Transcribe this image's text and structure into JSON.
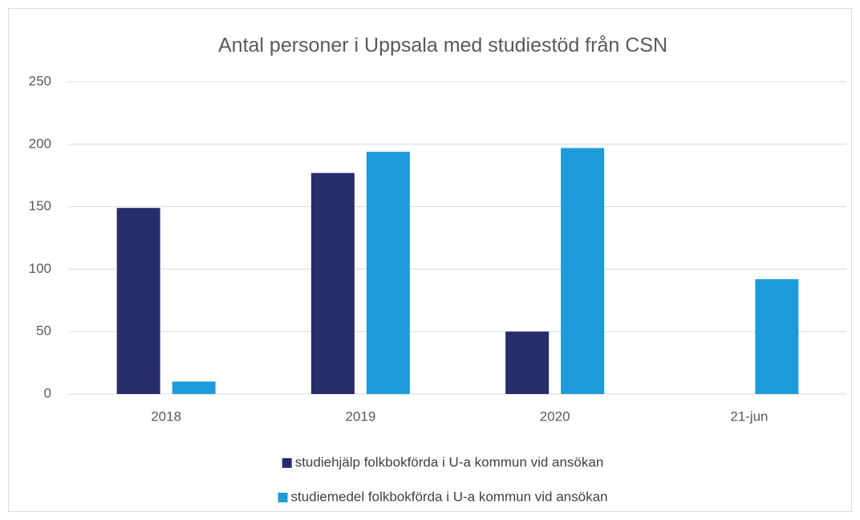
{
  "chart_data": {
    "type": "bar",
    "title": "Antal personer i Uppsala med studiestöd från CSN",
    "categories": [
      "2018",
      "2019",
      "2020",
      "21-jun"
    ],
    "series": [
      {
        "name": "studiehjälp folkbokförda i U-a kommun vid ansökan",
        "color": "#252d6b",
        "values": [
          149,
          177,
          50,
          null
        ]
      },
      {
        "name": "studiemedel folkbokförda i U-a kommun vid ansökan",
        "color": "#1c9cd8",
        "values": [
          10,
          194,
          197,
          92
        ]
      }
    ],
    "ylim": [
      0,
      250
    ],
    "yticks": [
      0,
      50,
      100,
      150,
      200,
      250
    ],
    "grid": true,
    "legend": "bottom"
  }
}
